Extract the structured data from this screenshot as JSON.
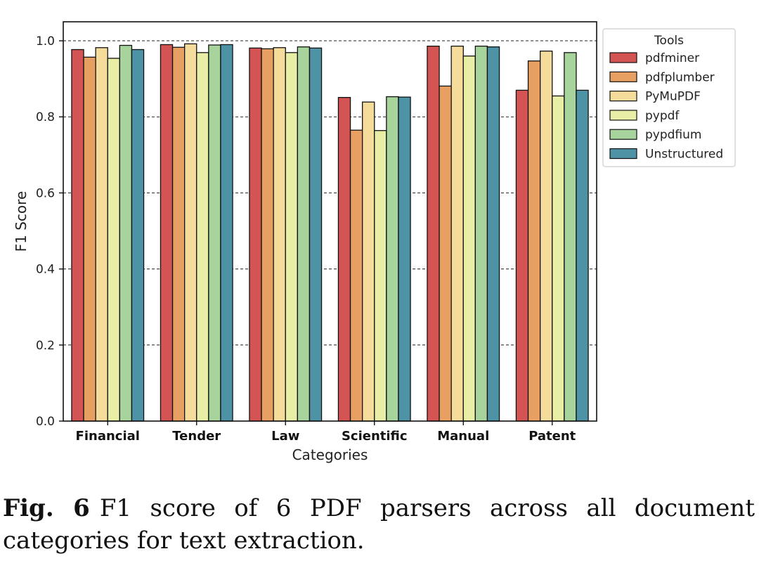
{
  "chart_data": {
    "type": "bar",
    "categories": [
      "Financial",
      "Tender",
      "Law",
      "Scientific",
      "Manual",
      "Patent"
    ],
    "series": [
      {
        "name": "pdfminer",
        "color": "#d35452",
        "values": [
          0.977,
          0.99,
          0.981,
          0.851,
          0.986,
          0.87
        ]
      },
      {
        "name": "pdfplumber",
        "color": "#e8a062",
        "values": [
          0.957,
          0.983,
          0.979,
          0.765,
          0.881,
          0.947
        ]
      },
      {
        "name": "PyMuPDF",
        "color": "#f5dc9b",
        "values": [
          0.982,
          0.992,
          0.982,
          0.839,
          0.986,
          0.973
        ]
      },
      {
        "name": "pypdf",
        "color": "#e9eea6",
        "values": [
          0.954,
          0.969,
          0.969,
          0.764,
          0.96,
          0.855
        ]
      },
      {
        "name": "pypdfium",
        "color": "#a6d49c",
        "values": [
          0.988,
          0.989,
          0.984,
          0.853,
          0.986,
          0.969
        ]
      },
      {
        "name": "Unstructured",
        "color": "#4e92a6",
        "values": [
          0.977,
          0.99,
          0.981,
          0.852,
          0.984,
          0.87
        ]
      }
    ],
    "title": "",
    "xlabel": "Categories",
    "ylabel": "F1 Score",
    "ylim": [
      0,
      1.05
    ],
    "yticks": [
      0.0,
      0.2,
      0.4,
      0.6,
      0.8,
      1.0
    ],
    "ytick_labels": [
      "0.0",
      "0.2",
      "0.4",
      "0.6",
      "0.8",
      "1.0"
    ],
    "grid": "dashed horizontal",
    "legend": {
      "title": "Tools",
      "placement": "outside-right-top"
    }
  },
  "caption": {
    "label": "Fig. 6",
    "text": "F1 score of 6 PDF parsers across all document categories for text extraction."
  }
}
